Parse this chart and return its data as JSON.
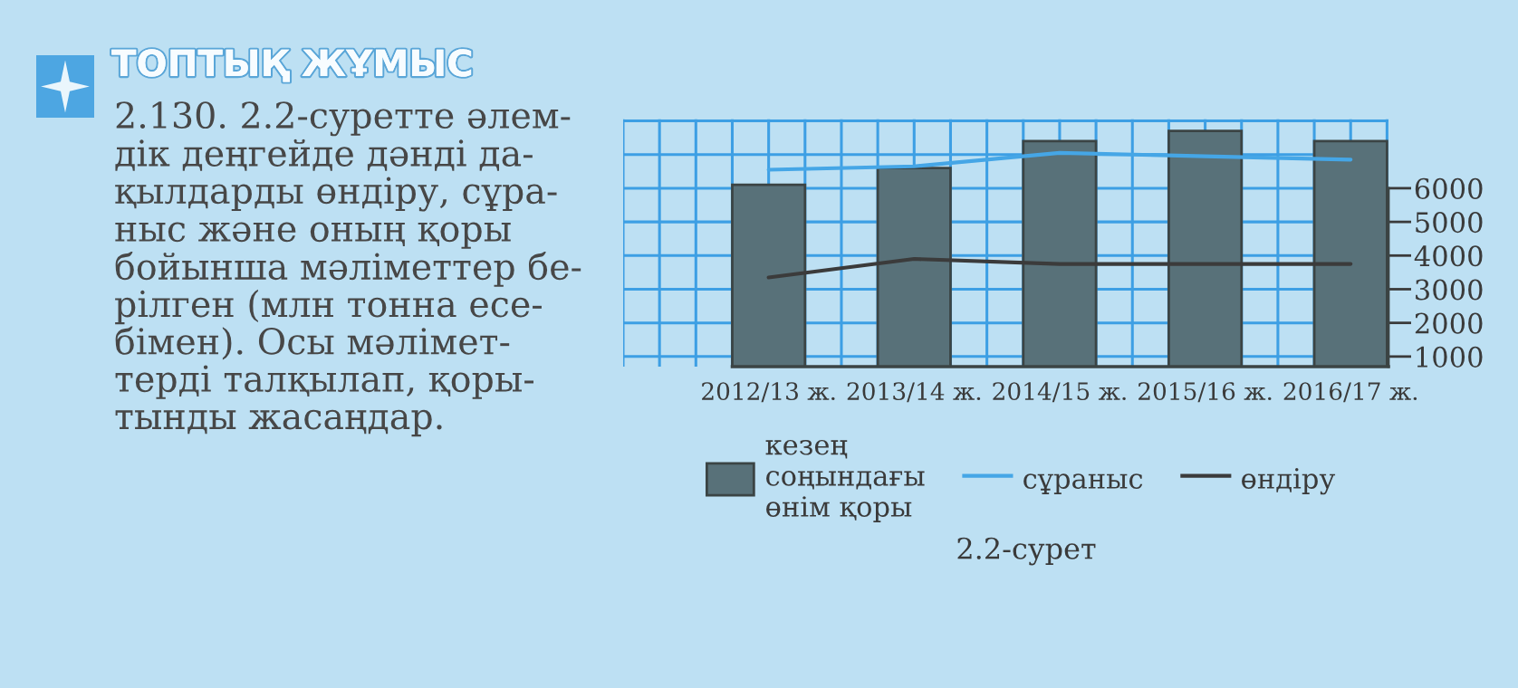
{
  "chart_data": {
    "type": "bar",
    "categories": [
      "2012/13 ж.",
      "2013/14 ж.",
      "2014/15 ж.",
      "2015/16 ж.",
      "2016/17 ж."
    ],
    "series": [
      {
        "name": "кезең\nсоңындағы\nөнім қоры",
        "color": "#587179",
        "values": [
          6100,
          6600,
          7400,
          7700,
          7400
        ]
      },
      {
        "name": "сұраныс",
        "type": "line",
        "color": "#45a6e6",
        "values": [
          6550,
          6650,
          7050,
          6950,
          6850
        ]
      },
      {
        "name": "өндіру",
        "type": "line",
        "color": "#3b3b3b",
        "values": [
          3350,
          3900,
          3750,
          3750,
          3750
        ]
      }
    ],
    "ylim": [
      700,
      8050
    ],
    "yticks": [
      1000,
      2000,
      3000,
      4000,
      5000,
      6000
    ],
    "grid": true,
    "legend": "bottom",
    "annotations": [
      "ТОПТЫҚ ЖҰМЫС",
      "2.130. 2.2-суретте әлем-\nдік деңгейде дәнді да-\nқылдарды өндіру, сұра-\nныс және оның қоры\nбойынша мәліметтер бе-\nрілген (млн тонна есе-\nбімен). Осы мәлімет-\nтерді талқылап, қоры-\nтынды жасаңдар.",
      "2.2-сурет"
    ]
  }
}
